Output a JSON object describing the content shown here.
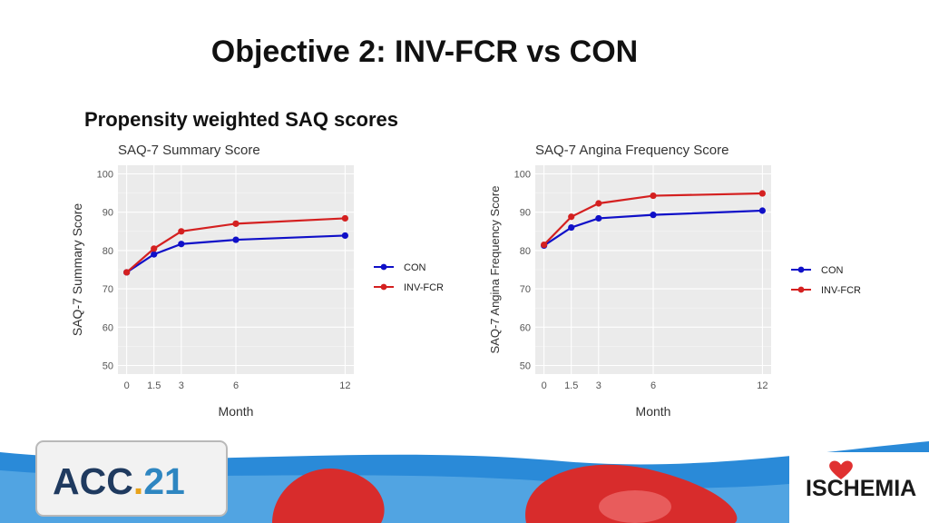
{
  "slide": {
    "title": "Objective 2: INV-FCR vs CON",
    "subtitle": "Propensity weighted SAQ scores"
  },
  "logos": {
    "acc_prefix": "ACC",
    "acc_dot": ".",
    "acc_number": "21",
    "ischemia": "ISCHEMIA"
  },
  "colors": {
    "CON": "#1010c8",
    "INV-FCR": "#d42020",
    "panel": "#ebebeb",
    "grid": "#ffffff",
    "footer_blue": "#2a8ad8",
    "footer_red": "#d82c2c"
  },
  "chart_data": [
    {
      "type": "line",
      "title": "SAQ-7 Summary Score",
      "xlabel": "Month",
      "ylabel": "SAQ-7 Summary Score",
      "x": [
        0,
        1.5,
        3,
        6,
        12
      ],
      "xticks": [
        "0",
        "1.5",
        "3",
        "6",
        "12"
      ],
      "yticks": [
        "50",
        "60",
        "70",
        "80",
        "90",
        "100"
      ],
      "ylim": [
        50,
        100
      ],
      "xlim": [
        0,
        12
      ],
      "grid": true,
      "legend_position": "right",
      "series": [
        {
          "name": "CON",
          "values": [
            74.3,
            79.0,
            81.7,
            82.8,
            83.9
          ]
        },
        {
          "name": "INV-FCR",
          "values": [
            74.3,
            80.5,
            85.0,
            87.0,
            88.4
          ]
        }
      ]
    },
    {
      "type": "line",
      "title": "SAQ-7 Angina Frequency Score",
      "xlabel": "Month",
      "ylabel": "SAQ-7 Angina Frequency Score",
      "x": [
        0,
        1.5,
        3,
        6,
        12
      ],
      "xticks": [
        "0",
        "1.5",
        "3",
        "6",
        "12"
      ],
      "yticks": [
        "50",
        "60",
        "70",
        "80",
        "90",
        "100"
      ],
      "ylim": [
        50,
        100
      ],
      "xlim": [
        0,
        12
      ],
      "grid": true,
      "legend_position": "right",
      "series": [
        {
          "name": "CON",
          "values": [
            81.3,
            86.0,
            88.4,
            89.3,
            90.4
          ]
        },
        {
          "name": "INV-FCR",
          "values": [
            81.5,
            88.8,
            92.3,
            94.3,
            94.9
          ]
        }
      ]
    }
  ]
}
